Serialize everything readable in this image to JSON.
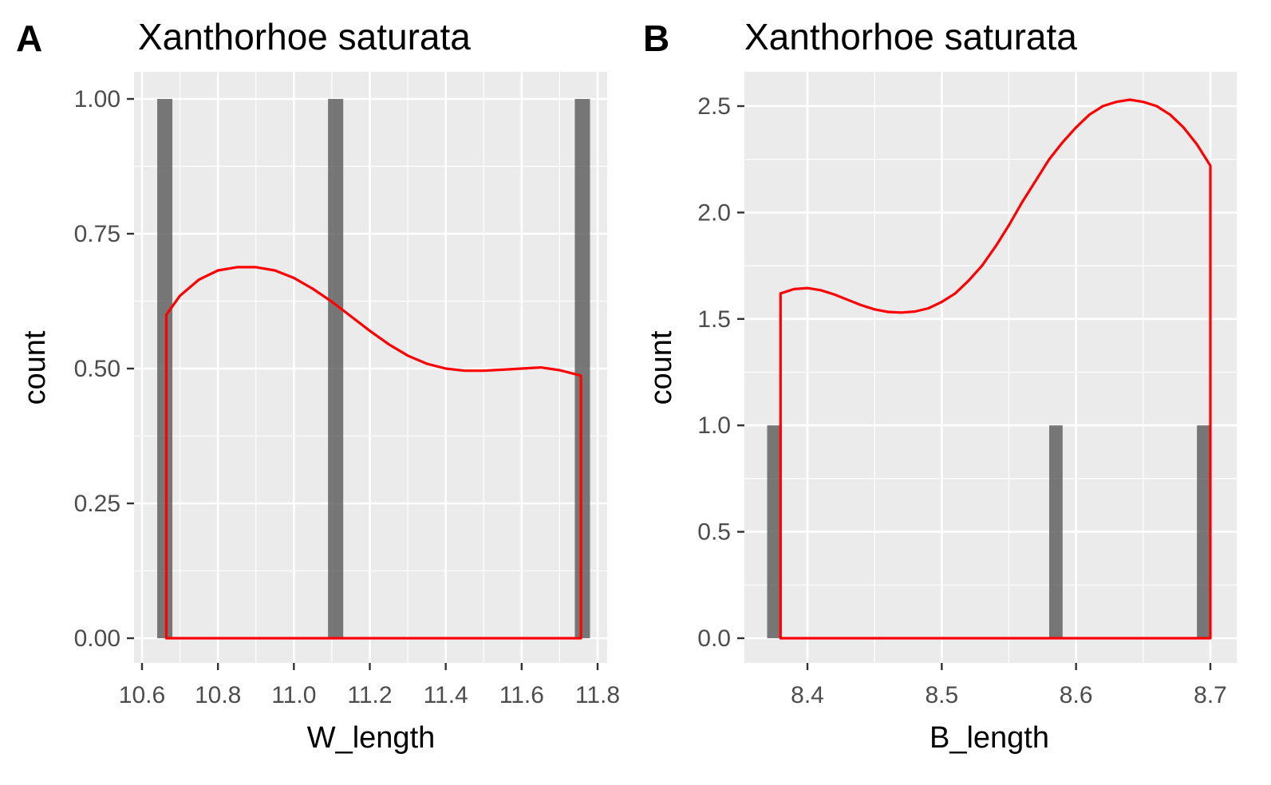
{
  "chart_data": [
    {
      "type": "bar",
      "panel_tag": "A",
      "title": "Xanthorhoe saturata",
      "xlabel": "W_length",
      "ylabel": "count",
      "xlim": [
        10.6,
        11.82
      ],
      "ylim": [
        0,
        1.0
      ],
      "x_ticks": [
        10.6,
        10.8,
        11.0,
        11.2,
        11.4,
        11.6,
        11.8
      ],
      "x_tick_labels": [
        "10.6",
        "10.8",
        "11.0",
        "11.2",
        "11.4",
        "11.6",
        "11.8"
      ],
      "y_ticks": [
        0,
        0.25,
        0.5,
        0.75,
        1.0
      ],
      "y_tick_labels": [
        "0.00",
        "0.25",
        "0.50",
        "0.75",
        "1.00"
      ],
      "grid": true,
      "bar_width": 0.04,
      "bars": [
        {
          "x": 10.66,
          "count": 1
        },
        {
          "x": 11.11,
          "count": 1
        },
        {
          "x": 11.76,
          "count": 1
        }
      ],
      "density_curve": {
        "color": "#ff0000",
        "x": [
          10.664,
          10.7,
          10.75,
          10.8,
          10.85,
          10.9,
          10.95,
          11.0,
          11.05,
          11.1,
          11.15,
          11.2,
          11.25,
          11.3,
          11.35,
          11.4,
          11.45,
          11.5,
          11.55,
          11.6,
          11.65,
          11.7,
          11.756
        ],
        "y": [
          0.6,
          0.635,
          0.665,
          0.682,
          0.688,
          0.688,
          0.682,
          0.668,
          0.648,
          0.624,
          0.597,
          0.57,
          0.545,
          0.524,
          0.509,
          0.5,
          0.496,
          0.496,
          0.498,
          0.5,
          0.502,
          0.497,
          0.487
        ]
      }
    },
    {
      "type": "bar",
      "panel_tag": "B",
      "title": "Xanthorhoe saturata",
      "xlabel": "B_length",
      "ylabel": "count",
      "xlim": [
        8.365,
        8.71
      ],
      "ylim": [
        0,
        2.5
      ],
      "x_ticks": [
        8.4,
        8.5,
        8.6,
        8.7
      ],
      "x_tick_labels": [
        "8.4",
        "8.5",
        "8.6",
        "8.7"
      ],
      "y_ticks": [
        0,
        0.5,
        1.0,
        1.5,
        2.0,
        2.5
      ],
      "y_tick_labels": [
        "0.0",
        "0.5",
        "1.0",
        "1.5",
        "2.0",
        "2.5"
      ],
      "grid": true,
      "bar_width": 0.01,
      "bars": [
        {
          "x": 8.375,
          "count": 1
        },
        {
          "x": 8.585,
          "count": 1
        },
        {
          "x": 8.695,
          "count": 1
        }
      ],
      "density_curve": {
        "color": "#ff0000",
        "x": [
          8.38,
          8.39,
          8.4,
          8.41,
          8.42,
          8.43,
          8.44,
          8.45,
          8.46,
          8.47,
          8.48,
          8.49,
          8.5,
          8.51,
          8.52,
          8.53,
          8.54,
          8.55,
          8.56,
          8.57,
          8.58,
          8.59,
          8.6,
          8.61,
          8.62,
          8.63,
          8.64,
          8.65,
          8.66,
          8.67,
          8.68,
          8.69,
          8.7
        ],
        "y": [
          1.62,
          1.64,
          1.645,
          1.635,
          1.615,
          1.59,
          1.565,
          1.545,
          1.533,
          1.53,
          1.535,
          1.55,
          1.58,
          1.62,
          1.68,
          1.75,
          1.84,
          1.94,
          2.05,
          2.15,
          2.25,
          2.33,
          2.4,
          2.46,
          2.5,
          2.52,
          2.53,
          2.52,
          2.5,
          2.46,
          2.4,
          2.32,
          2.22
        ]
      }
    }
  ]
}
